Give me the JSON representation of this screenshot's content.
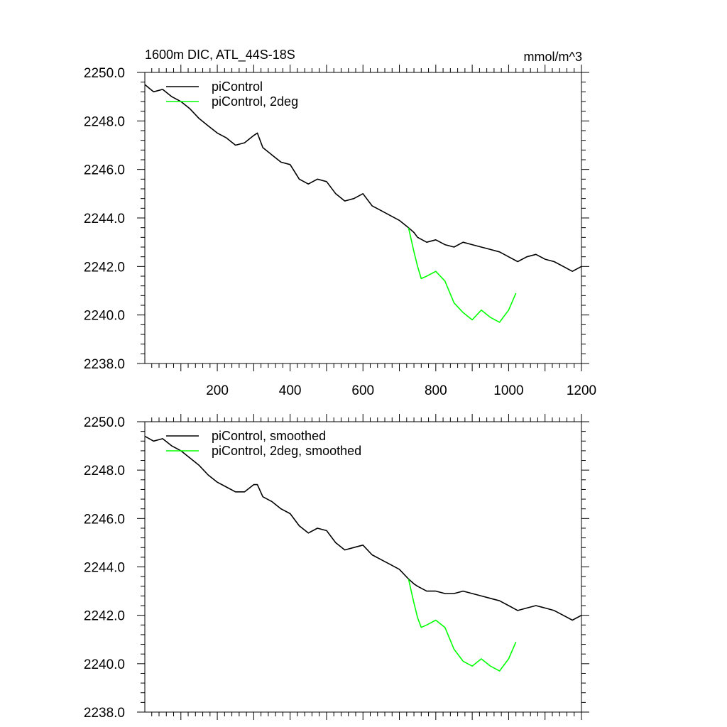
{
  "chart_data": [
    {
      "type": "line",
      "title": "1600m DIC, ATL_44S-18S",
      "units": "mmol/m^3",
      "xlim": [
        1,
        1200
      ],
      "ylim": [
        2238.0,
        2250.0
      ],
      "x_ticks": [
        200,
        400,
        600,
        800,
        1000,
        1200
      ],
      "x_tick_labels": [
        "200",
        "400",
        "600",
        "800",
        "1000",
        "1200"
      ],
      "y_ticks": [
        2238.0,
        2240.0,
        2242.0,
        2244.0,
        2246.0,
        2248.0,
        2250.0
      ],
      "y_tick_labels": [
        "2238.0",
        "2240.0",
        "2242.0",
        "2244.0",
        "2246.0",
        "2248.0",
        "2250.0"
      ],
      "legend_position": "top-left",
      "series": [
        {
          "name": "piControl",
          "color": "#000000",
          "x": [
            1,
            25,
            50,
            75,
            100,
            125,
            150,
            175,
            200,
            225,
            250,
            275,
            300,
            310,
            325,
            350,
            375,
            400,
            425,
            450,
            475,
            500,
            525,
            550,
            575,
            600,
            625,
            650,
            675,
            700,
            725,
            740,
            750,
            775,
            800,
            825,
            850,
            875,
            900,
            925,
            950,
            975,
            1000,
            1025,
            1050,
            1075,
            1100,
            1125,
            1150,
            1175,
            1200
          ],
          "y": [
            2249.5,
            2249.2,
            2249.3,
            2249.0,
            2248.8,
            2248.5,
            2248.1,
            2247.8,
            2247.5,
            2247.3,
            2247.0,
            2247.1,
            2247.4,
            2247.5,
            2246.9,
            2246.6,
            2246.3,
            2246.2,
            2245.6,
            2245.4,
            2245.6,
            2245.5,
            2245.0,
            2244.7,
            2244.8,
            2245.0,
            2244.5,
            2244.3,
            2244.1,
            2243.9,
            2243.6,
            2243.4,
            2243.2,
            2243.0,
            2243.1,
            2242.9,
            2242.8,
            2243.0,
            2242.9,
            2242.8,
            2242.7,
            2242.6,
            2242.4,
            2242.2,
            2242.4,
            2242.5,
            2242.3,
            2242.2,
            2242.0,
            2241.8,
            2242.0
          ]
        },
        {
          "name": "piControl, 2deg",
          "color": "#00ff00",
          "x": [
            725,
            740,
            750,
            760,
            775,
            800,
            825,
            850,
            875,
            900,
            925,
            950,
            975,
            1000,
            1020
          ],
          "y": [
            2243.6,
            2242.6,
            2242.0,
            2241.5,
            2241.6,
            2241.8,
            2241.4,
            2240.5,
            2240.1,
            2239.8,
            2240.2,
            2239.9,
            2239.7,
            2240.2,
            2240.9
          ]
        }
      ]
    },
    {
      "type": "line",
      "xlim": [
        1,
        1200
      ],
      "ylim": [
        2238.0,
        2250.0
      ],
      "y_ticks": [
        2238.0,
        2240.0,
        2242.0,
        2244.0,
        2246.0,
        2248.0,
        2250.0
      ],
      "y_tick_labels": [
        "2238.0",
        "2240.0",
        "2242.0",
        "2244.0",
        "2246.0",
        "2248.0",
        "2250.0"
      ],
      "legend_position": "top-left",
      "series": [
        {
          "name": "piControl, smoothed",
          "color": "#000000",
          "x": [
            1,
            25,
            50,
            75,
            100,
            125,
            150,
            175,
            200,
            225,
            250,
            275,
            300,
            310,
            325,
            350,
            375,
            400,
            425,
            450,
            475,
            500,
            525,
            550,
            575,
            600,
            625,
            650,
            675,
            700,
            725,
            740,
            750,
            775,
            800,
            825,
            850,
            875,
            900,
            925,
            950,
            975,
            1000,
            1025,
            1050,
            1075,
            1100,
            1125,
            1150,
            1175,
            1200
          ],
          "y": [
            2249.4,
            2249.2,
            2249.3,
            2249.0,
            2248.8,
            2248.5,
            2248.2,
            2247.8,
            2247.5,
            2247.3,
            2247.1,
            2247.1,
            2247.4,
            2247.4,
            2246.9,
            2246.7,
            2246.4,
            2246.2,
            2245.7,
            2245.4,
            2245.6,
            2245.5,
            2245.0,
            2244.7,
            2244.8,
            2244.9,
            2244.5,
            2244.3,
            2244.1,
            2243.9,
            2243.5,
            2243.3,
            2243.2,
            2243.0,
            2243.0,
            2242.9,
            2242.9,
            2243.0,
            2242.9,
            2242.8,
            2242.7,
            2242.6,
            2242.4,
            2242.2,
            2242.3,
            2242.4,
            2242.3,
            2242.2,
            2242.0,
            2241.8,
            2242.0
          ]
        },
        {
          "name": "piControl, 2deg, smoothed",
          "color": "#00ff00",
          "x": [
            725,
            740,
            750,
            760,
            775,
            800,
            825,
            850,
            875,
            900,
            925,
            950,
            975,
            1000,
            1020
          ],
          "y": [
            2243.5,
            2242.5,
            2241.9,
            2241.5,
            2241.6,
            2241.8,
            2241.5,
            2240.6,
            2240.1,
            2239.9,
            2240.2,
            2239.9,
            2239.7,
            2240.2,
            2240.9
          ]
        }
      ]
    }
  ]
}
